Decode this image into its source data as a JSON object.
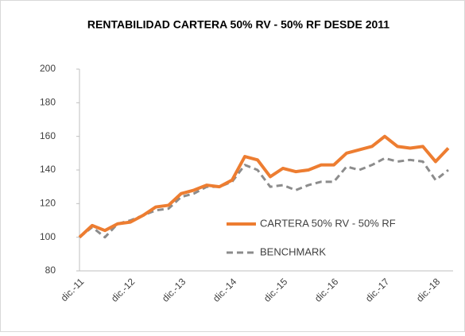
{
  "chart_data": {
    "type": "line",
    "title": "RENTABILIDAD CARTERA 50% RV - 50% RF DESDE 2011",
    "categories": [
      "dic.-11",
      null,
      null,
      null,
      "dic.-12",
      null,
      null,
      null,
      "dic.-13",
      null,
      null,
      null,
      "dic.-14",
      null,
      null,
      null,
      "dic.-15",
      null,
      null,
      null,
      "dic.-16",
      null,
      null,
      null,
      "dic.-17",
      null,
      null,
      null,
      "dic.-18",
      null
    ],
    "series": [
      {
        "name": "CARTERA 50% RV - 50% RF",
        "color": "#ed7d31",
        "dash": false,
        "values": [
          100,
          107,
          104,
          108,
          109,
          113,
          118,
          119,
          126,
          128,
          131,
          130,
          134,
          148,
          146,
          136,
          141,
          139,
          140,
          143,
          143,
          150,
          152,
          154,
          160,
          154,
          153,
          154,
          145,
          153
        ]
      },
      {
        "name": "BENCHMARK",
        "color": "#8c8c8c",
        "dash": true,
        "values": [
          100,
          106,
          100,
          108,
          110,
          113,
          116,
          117,
          124,
          126,
          130,
          130,
          133,
          143,
          140,
          130,
          131,
          128,
          131,
          133,
          133,
          142,
          140,
          143,
          147,
          145,
          146,
          145,
          134,
          140
        ]
      }
    ],
    "ylim": [
      80,
      200
    ],
    "yticks": [
      80,
      100,
      120,
      140,
      160,
      180,
      200
    ],
    "grid": false
  }
}
